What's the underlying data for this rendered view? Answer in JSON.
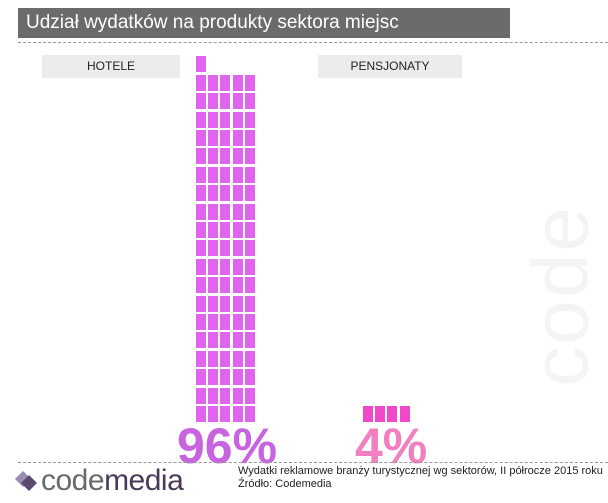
{
  "title": "Udział wydatków na produkty sektora miejsc noclegowych",
  "watermark": "code",
  "chart_data": {
    "type": "waffle",
    "title": "Udział wydatków na produkty sektora miejsc noclegowych",
    "categories": [
      "HOTELE",
      "PENSJONATY"
    ],
    "values": [
      96,
      4
    ],
    "value_labels": [
      "96%",
      "4%"
    ],
    "colors": [
      "#e064ee",
      "#f048c8"
    ],
    "label_colors": [
      "#c864e0",
      "#f080c0"
    ]
  },
  "footer": {
    "line1": "Wydatki reklamowe branży turystycznej wg sektorów, II półrocze 2015 roku",
    "line2": "Źródło: Codemedia"
  },
  "logo": {
    "text_a": "code",
    "text_b": "media"
  }
}
